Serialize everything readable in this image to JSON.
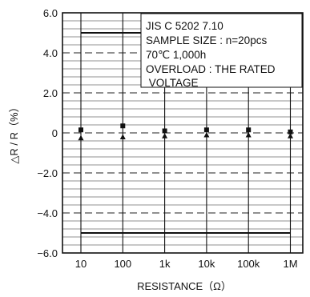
{
  "chart_data": {
    "type": "scatter",
    "title": "",
    "xlabel": "RESISTANCE（Ω）",
    "ylabel": "△R / R（%）",
    "xscale": "log",
    "categories": [
      "10",
      "100",
      "1k",
      "10k",
      "100k",
      "1M"
    ],
    "x": [
      10,
      100,
      1000,
      10000,
      100000,
      1000000
    ],
    "ylim": [
      -6.0,
      6.0
    ],
    "yticks": [
      "6.0",
      "4.0",
      "2.0",
      "0",
      "−2.0",
      "−4.0",
      "−6.0"
    ],
    "ytick_values": [
      6,
      4,
      2,
      0,
      -2,
      -4,
      -6
    ],
    "grid": true,
    "limits": [
      5,
      -5
    ],
    "series": [
      {
        "marker": "square",
        "values": [
          0.15,
          0.35,
          0.1,
          0.15,
          0.15,
          0.05
        ]
      },
      {
        "marker": "triangle",
        "values": [
          -0.25,
          -0.2,
          -0.15,
          -0.1,
          -0.1,
          -0.15
        ]
      }
    ],
    "annotation": {
      "lines": [
        "JIS C 5202 7.10",
        "SAMPLE SIZE : n=20pcs",
        "70℃ 1,000h",
        "OVERLOAD : THE RATED",
        " VOLTAGE"
      ],
      "placement": "top-right"
    },
    "colors": {
      "ink": "#111111",
      "grid": "#222222",
      "background": "#ffffff"
    }
  }
}
